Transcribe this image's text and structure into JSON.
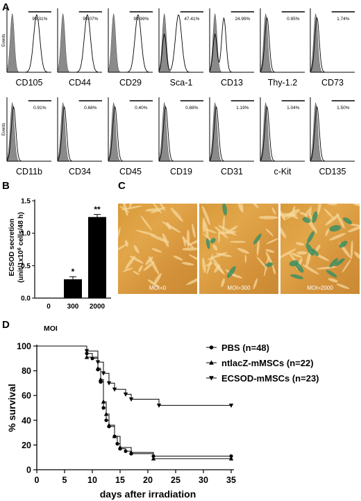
{
  "panels": {
    "a": "A",
    "b": "B",
    "c": "C",
    "d": "D"
  },
  "flow": {
    "y_axis_label": "Events",
    "rows": [
      [
        {
          "marker": "CD105",
          "percent": "99.31%"
        },
        {
          "marker": "CD44",
          "percent": "99.07%"
        },
        {
          "marker": "CD29",
          "percent": "99.99%"
        },
        {
          "marker": "Sca-1",
          "percent": "47.41%"
        },
        {
          "marker": "CD13",
          "percent": "24.99%"
        },
        {
          "marker": "Thy-1.2",
          "percent": "0.95%"
        },
        {
          "marker": "CD73",
          "percent": "1.74%"
        }
      ],
      [
        {
          "marker": "CD11b",
          "percent": "0.91%"
        },
        {
          "marker": "CD34",
          "percent": "0.68%"
        },
        {
          "marker": "CD45",
          "percent": "0.40%"
        },
        {
          "marker": "CD19",
          "percent": "0.88%"
        },
        {
          "marker": "CD31",
          "percent": "1.19%"
        },
        {
          "marker": "c-Kit",
          "percent": "1.04%"
        },
        {
          "marker": "CD135",
          "percent": "1.50%"
        }
      ]
    ]
  },
  "bar": {
    "ylabel_line1": "ECSOD secretion",
    "ylabel_line2": "(unit/1x10",
    "ylabel_sup": "6",
    "ylabel_line2_rest": " cells/48 h)",
    "yticks": [
      "0.0",
      "0.5",
      "1.0",
      "1.5"
    ]
  },
  "photos": [
    {
      "label": "MOI=0"
    },
    {
      "label": "MOI=300"
    },
    {
      "label": "MOI=2000"
    }
  ],
  "chart_data": [
    {
      "type": "bar",
      "categories": [
        "0",
        "300",
        "2000"
      ],
      "values": [
        0.0,
        0.29,
        1.25
      ],
      "errors": [
        0.0,
        0.04,
        0.04
      ],
      "significance": [
        "",
        "*",
        "**"
      ],
      "xlabel": "",
      "ylabel": "ECSOD secretion (unit/1x10^6 cells/48 h)",
      "ylim": [
        0,
        1.5
      ]
    },
    {
      "type": "line",
      "title": "MOI",
      "xlabel": "days after irradiation",
      "ylabel": "% survival",
      "xlim": [
        0,
        35
      ],
      "ylim": [
        0,
        100
      ],
      "xticks": [
        0,
        5,
        10,
        15,
        20,
        25,
        30,
        35
      ],
      "yticks": [
        0,
        20,
        40,
        60,
        80,
        100
      ],
      "legend_position": "right",
      "series": [
        {
          "name": "PBS (n=48)",
          "marker": "circle",
          "points": [
            [
              0,
              100
            ],
            [
              9,
              100
            ],
            [
              9,
              94
            ],
            [
              10,
              94
            ],
            [
              10,
              90
            ],
            [
              11,
              90
            ],
            [
              11,
              81
            ],
            [
              11.5,
              81
            ],
            [
              11.5,
              71
            ],
            [
              12,
              71
            ],
            [
              12,
              50
            ],
            [
              12.5,
              50
            ],
            [
              12.5,
              40
            ],
            [
              13,
              40
            ],
            [
              13,
              35
            ],
            [
              14,
              35
            ],
            [
              14,
              27
            ],
            [
              14.5,
              27
            ],
            [
              14.5,
              21
            ],
            [
              15,
              21
            ],
            [
              15,
              17
            ],
            [
              16,
              17
            ],
            [
              16,
              15
            ],
            [
              17,
              15
            ],
            [
              17,
              13
            ],
            [
              21,
              13
            ],
            [
              21,
              11
            ],
            [
              35,
              11
            ]
          ]
        },
        {
          "name": "ntlacZ-mMSCs (n=22)",
          "marker": "triangle-up",
          "points": [
            [
              0,
              100
            ],
            [
              9,
              100
            ],
            [
              9,
              91
            ],
            [
              11,
              91
            ],
            [
              11,
              82
            ],
            [
              11.5,
              82
            ],
            [
              11.5,
              73
            ],
            [
              12,
              73
            ],
            [
              12,
              55
            ],
            [
              12.5,
              55
            ],
            [
              12.5,
              45
            ],
            [
              13,
              45
            ],
            [
              13,
              36
            ],
            [
              14,
              36
            ],
            [
              14,
              27
            ],
            [
              15,
              27
            ],
            [
              15,
              18
            ],
            [
              17,
              18
            ],
            [
              17,
              14
            ],
            [
              21,
              14
            ],
            [
              21,
              9
            ],
            [
              35,
              9
            ]
          ]
        },
        {
          "name": "ECSOD-mMSCs (n=23)",
          "marker": "triangle-down",
          "points": [
            [
              0,
              100
            ],
            [
              9,
              100
            ],
            [
              9,
              96
            ],
            [
              11,
              96
            ],
            [
              11,
              87
            ],
            [
              12,
              87
            ],
            [
              12,
              78
            ],
            [
              13,
              78
            ],
            [
              13,
              70
            ],
            [
              14,
              70
            ],
            [
              14,
              65
            ],
            [
              16,
              65
            ],
            [
              16,
              61
            ],
            [
              17,
              61
            ],
            [
              17,
              57
            ],
            [
              22,
              57
            ],
            [
              22,
              52
            ],
            [
              35,
              52
            ]
          ]
        }
      ]
    }
  ]
}
